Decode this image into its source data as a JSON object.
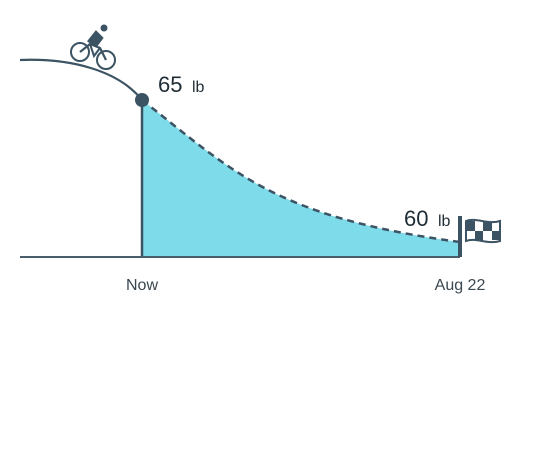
{
  "chart_data": {
    "type": "area",
    "title": "",
    "xlabel": "",
    "ylabel": "",
    "categories": [
      "Now",
      "Aug 22"
    ],
    "series": [
      {
        "values": [
          65,
          60
        ]
      }
    ],
    "annotations": {
      "current": {
        "value": "65",
        "unit": "lb"
      },
      "goal": {
        "value": "60",
        "unit": "lb"
      }
    },
    "legend": "none",
    "grid": false
  },
  "colors": {
    "fill": "#7ddbea",
    "line": "#3b5363",
    "text": "#1f2d36",
    "axis": "#4a5d6a"
  },
  "icons": {
    "start": "cyclist-icon",
    "end": "checkered-flag-icon"
  }
}
